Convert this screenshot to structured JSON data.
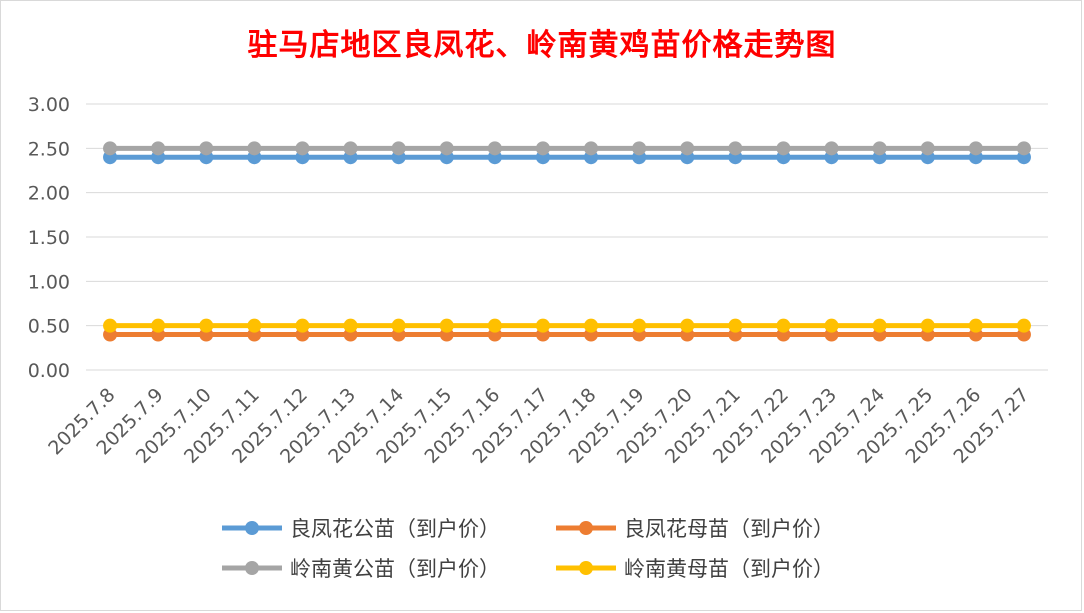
{
  "chart_data": {
    "type": "line",
    "title": "驻马店地区良凤花、岭南黄鸡苗价格走势图",
    "xlabel": "",
    "ylabel": "",
    "ylim": [
      0,
      3
    ],
    "yticks": [
      "0.00",
      "0.50",
      "1.00",
      "1.50",
      "2.00",
      "2.50",
      "3.00"
    ],
    "categories": [
      "2025.7.8",
      "2025.7.9",
      "2025.7.10",
      "2025.7.11",
      "2025.7.12",
      "2025.7.13",
      "2025.7.14",
      "2025.7.15",
      "2025.7.16",
      "2025.7.17",
      "2025.7.18",
      "2025.7.19",
      "2025.7.20",
      "2025.7.21",
      "2025.7.22",
      "2025.7.23",
      "2025.7.24",
      "2025.7.25",
      "2025.7.26",
      "2025.7.27"
    ],
    "grid": true,
    "legend_position": "bottom",
    "series": [
      {
        "name": "良凤花公苗（到户价）",
        "color": "#5b9bd5",
        "values": [
          2.4,
          2.4,
          2.4,
          2.4,
          2.4,
          2.4,
          2.4,
          2.4,
          2.4,
          2.4,
          2.4,
          2.4,
          2.4,
          2.4,
          2.4,
          2.4,
          2.4,
          2.4,
          2.4,
          2.4
        ]
      },
      {
        "name": "良凤花母苗（到户价）",
        "color": "#ed7d31",
        "values": [
          0.4,
          0.4,
          0.4,
          0.4,
          0.4,
          0.4,
          0.4,
          0.4,
          0.4,
          0.4,
          0.4,
          0.4,
          0.4,
          0.4,
          0.4,
          0.4,
          0.4,
          0.4,
          0.4,
          0.4
        ]
      },
      {
        "name": "岭南黄公苗（到户价）",
        "color": "#a5a5a5",
        "values": [
          2.5,
          2.5,
          2.5,
          2.5,
          2.5,
          2.5,
          2.5,
          2.5,
          2.5,
          2.5,
          2.5,
          2.5,
          2.5,
          2.5,
          2.5,
          2.5,
          2.5,
          2.5,
          2.5,
          2.5
        ]
      },
      {
        "name": "岭南黄母苗（到户价）",
        "color": "#ffc000",
        "values": [
          0.5,
          0.5,
          0.5,
          0.5,
          0.5,
          0.5,
          0.5,
          0.5,
          0.5,
          0.5,
          0.5,
          0.5,
          0.5,
          0.5,
          0.5,
          0.5,
          0.5,
          0.5,
          0.5,
          0.5
        ]
      }
    ]
  }
}
